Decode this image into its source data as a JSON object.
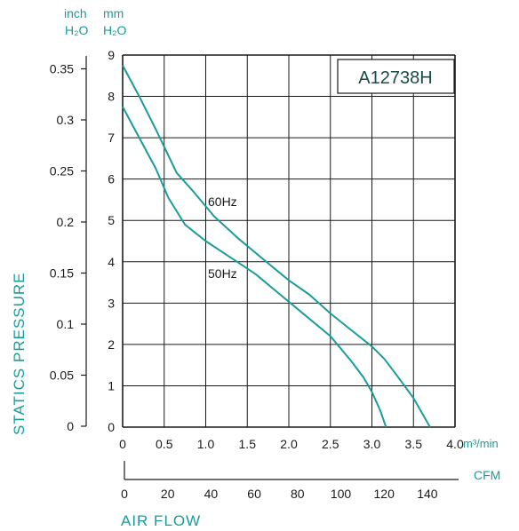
{
  "chart_data": {
    "type": "line",
    "model_label": "A12738H",
    "x_unit": "m³/min",
    "xlim": [
      0,
      4.0
    ],
    "x_ticks": [
      "0",
      "0.5",
      "1.0",
      "1.5",
      "2.0",
      "2.5",
      "3.0",
      "3.5",
      "4.0"
    ],
    "cfm_unit": "CFM",
    "cfm_ticks": [
      "0",
      "20",
      "40",
      "60",
      "80",
      "100",
      "120",
      "140"
    ],
    "xlabel": "AIR FLOW",
    "ylabel": "STATICS PRESSURE",
    "y_mm_unit": [
      "mm",
      "H₂O"
    ],
    "y_inch_unit": [
      "inch",
      "H₂O"
    ],
    "ylim_mm": [
      0,
      9
    ],
    "y_mm_ticks": [
      "0",
      "1",
      "2",
      "3",
      "4",
      "5",
      "6",
      "7",
      "8",
      "9"
    ],
    "y_inch_ticks": [
      "0",
      "0.05",
      "0.1",
      "0.15",
      "0.2",
      "0.25",
      "0.3",
      "0.35"
    ],
    "grid": true,
    "line_color": "#1a9c9a",
    "series": [
      {
        "name": "60Hz",
        "x": [
          0,
          0.2,
          0.4,
          0.65,
          0.85,
          1.1,
          1.4,
          1.7,
          2.0,
          2.25,
          2.5,
          2.75,
          3.0,
          3.15,
          3.3,
          3.5,
          3.7
        ],
        "y": [
          8.75,
          8.0,
          7.2,
          6.15,
          5.7,
          5.1,
          4.55,
          4.05,
          3.55,
          3.2,
          2.75,
          2.35,
          1.95,
          1.65,
          1.25,
          0.7,
          0.0
        ]
      },
      {
        "name": "50Hz",
        "x": [
          0,
          0.2,
          0.4,
          0.55,
          0.75,
          1.0,
          1.3,
          1.6,
          1.9,
          2.2,
          2.5,
          2.75,
          2.9,
          3.0,
          3.1,
          3.17
        ],
        "y": [
          7.75,
          7.0,
          6.25,
          5.55,
          4.9,
          4.5,
          4.1,
          3.7,
          3.2,
          2.7,
          2.2,
          1.6,
          1.2,
          0.85,
          0.4,
          0.0
        ]
      }
    ]
  }
}
